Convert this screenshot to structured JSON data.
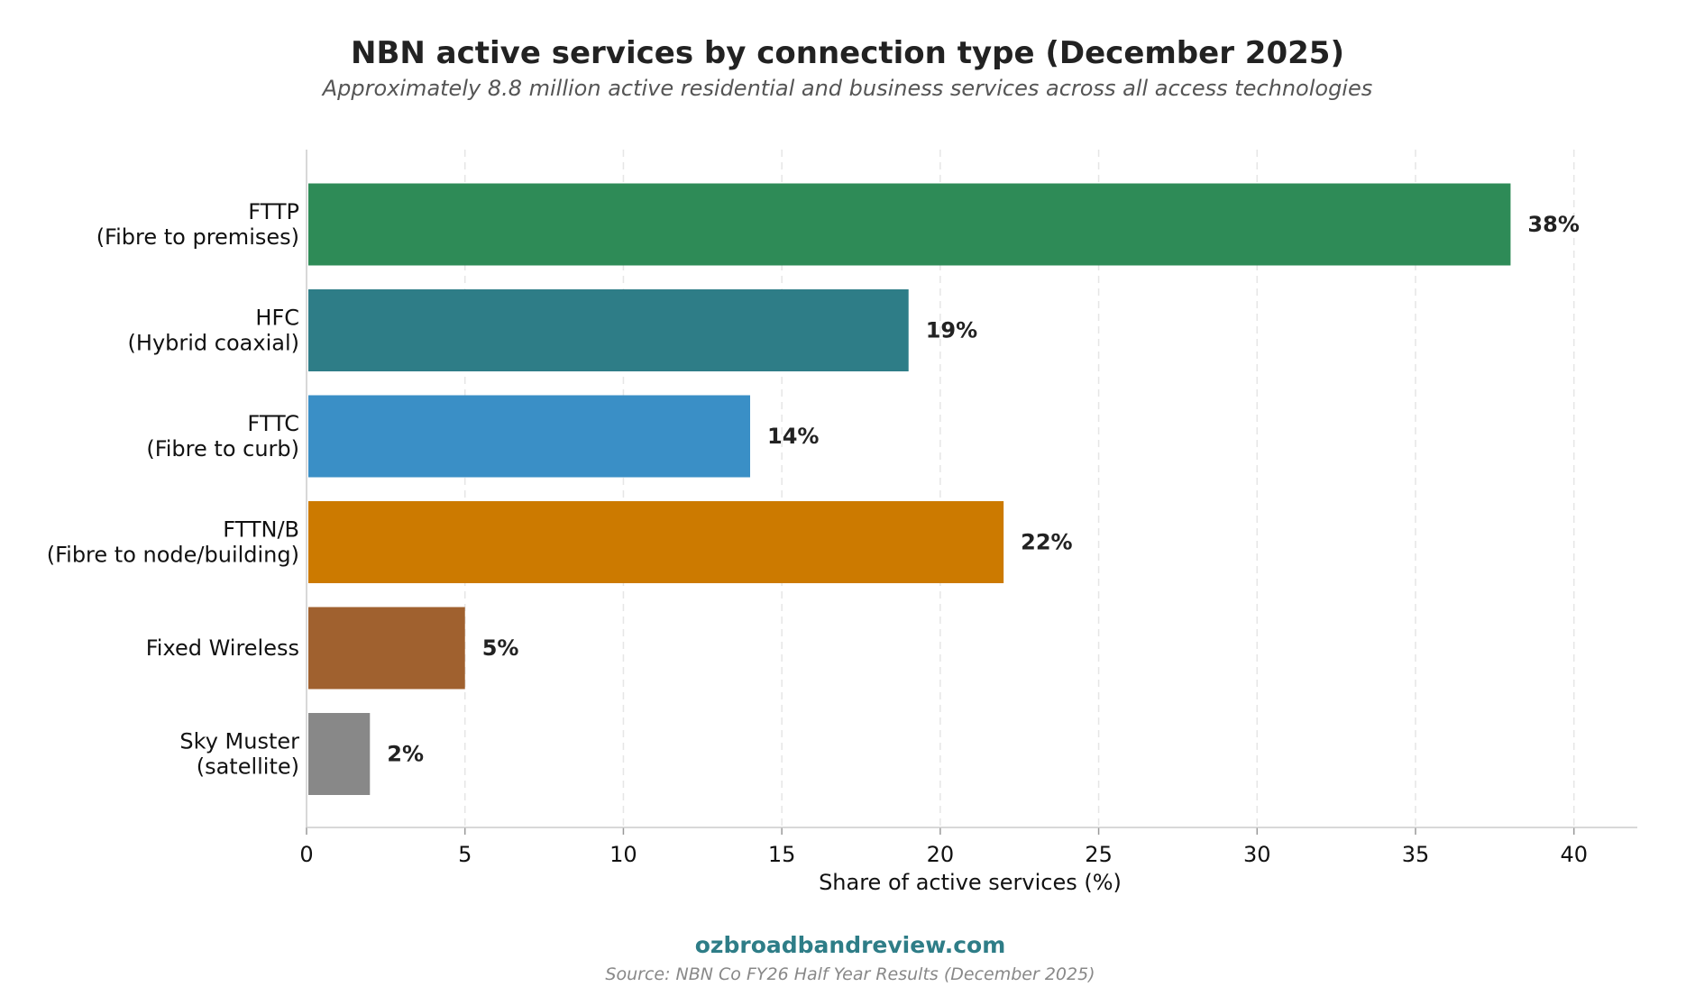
{
  "chart_data": {
    "type": "bar",
    "orientation": "horizontal",
    "title": "NBN active services by connection type (December 2025)",
    "subtitle": "Approximately 8.8 million active residential and business services across all access technologies",
    "xlabel": "Share of active services (%)",
    "ylabel": "",
    "xlim": [
      0,
      42
    ],
    "xticks": [
      0,
      5,
      10,
      15,
      20,
      25,
      30,
      35,
      40
    ],
    "grid": "vertical dashed",
    "legend": "none",
    "categories": [
      [
        "FTTP",
        "(Fibre to premises)"
      ],
      [
        "HFC",
        "(Hybrid coaxial)"
      ],
      [
        "FTTC",
        "(Fibre to curb)"
      ],
      [
        "FTTN/B",
        "(Fibre to node/building)"
      ],
      [
        "Fixed Wireless"
      ],
      [
        "Sky Muster",
        "(satellite)"
      ]
    ],
    "values": [
      38,
      19,
      14,
      22,
      5,
      2
    ],
    "value_labels": [
      "38%",
      "19%",
      "14%",
      "22%",
      "5%",
      "2%"
    ],
    "colors": [
      "#2e8b57",
      "#2e7d87",
      "#3a8fc6",
      "#cc7a00",
      "#a0612f",
      "#888888"
    ]
  },
  "footer": {
    "brand": "ozbroadbandreview.com",
    "brand_color": "#2e7d87",
    "source": "Source: NBN Co FY26 Half Year Results (December 2025)"
  }
}
